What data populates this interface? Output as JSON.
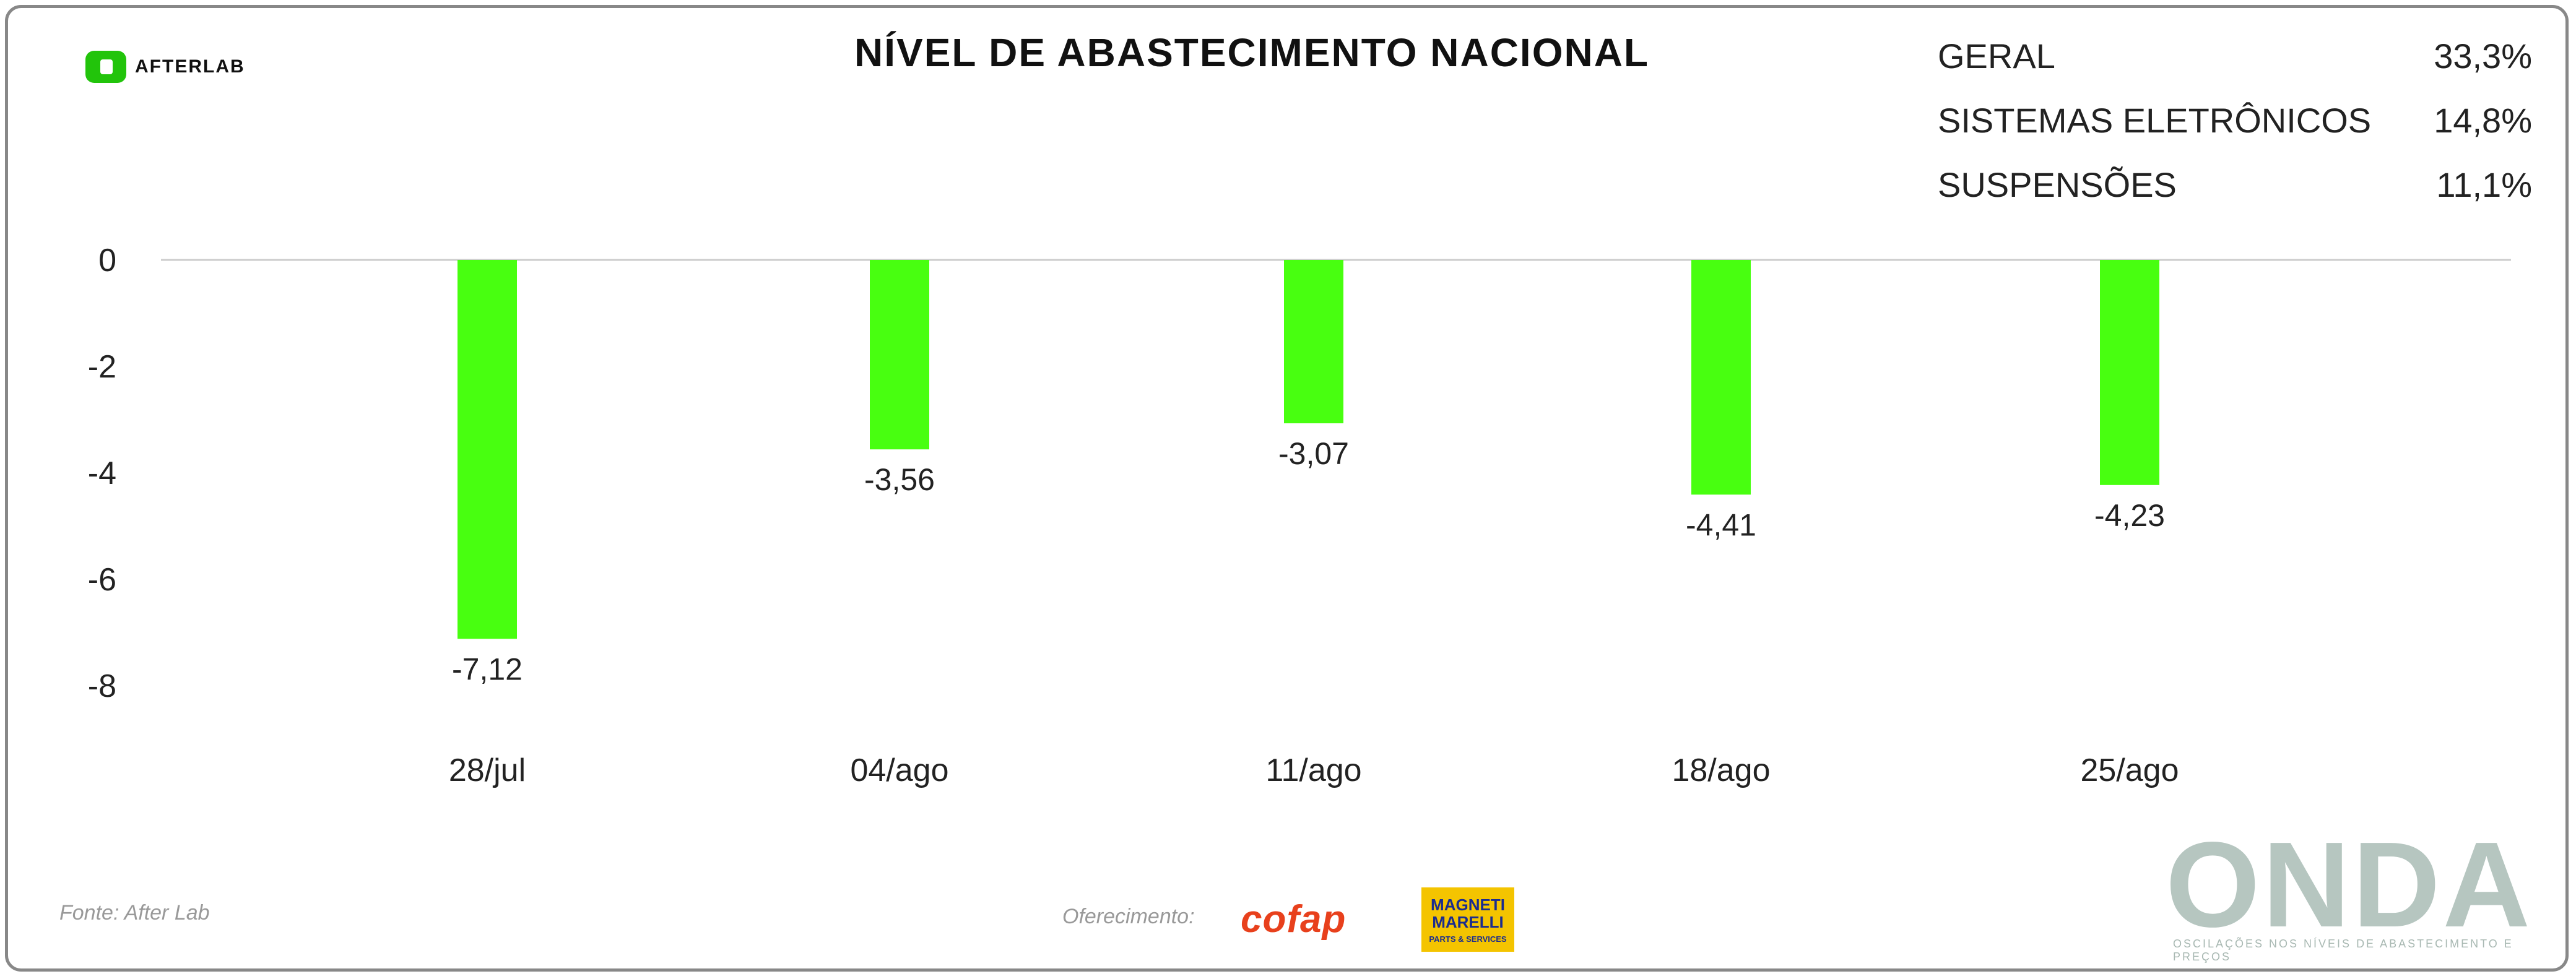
{
  "brand": {
    "afterlab": "AFTERLAB",
    "onda": "ONDA",
    "onda_tagline": "OSCILAÇÕES NOS NÍVEIS DE ABASTECIMENTO E PREÇOS",
    "cofap": "cofap",
    "magneti_line1": "MAGNETI",
    "magneti_line2": "MARELLI",
    "magneti_line3": "PARTS & SERVICES"
  },
  "legend": [
    {
      "label": "GERAL",
      "value": "33,3%"
    },
    {
      "label": "SISTEMAS ELETRÔNICOS",
      "value": "14,8%"
    },
    {
      "label": "SUSPENSÕES",
      "value": "11,1%"
    }
  ],
  "footer": {
    "source": "Fonte: After Lab",
    "support": "Oferecimento:"
  },
  "colors": {
    "bar": "#48ff10",
    "gridline": "#cccccc",
    "onda": "#b6c6c0"
  },
  "chart_data": {
    "type": "bar",
    "title": "NÍVEL DE ABASTECIMENTO NACIONAL",
    "categories": [
      "28/jul",
      "04/ago",
      "11/ago",
      "18/ago",
      "25/ago"
    ],
    "values": [
      -7.12,
      -3.56,
      -3.07,
      -4.41,
      -4.23
    ],
    "value_labels": [
      "-7,12",
      "-3,56",
      "-3,07",
      "-4,41",
      "-4,23"
    ],
    "yticks": [
      0,
      -2,
      -4,
      -6,
      -8
    ],
    "ytick_labels": [
      "0",
      "-2",
      "-4",
      "-6",
      "-8"
    ],
    "ylim": [
      -8,
      0
    ],
    "grid": false,
    "legend_placement": "top-right"
  }
}
